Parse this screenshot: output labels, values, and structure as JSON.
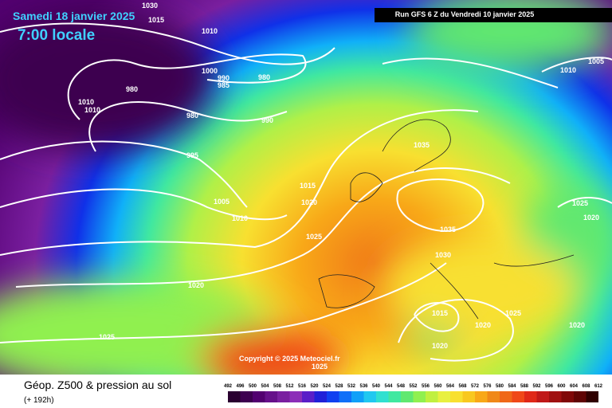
{
  "header": {
    "date": "Samedi 18 janvier 2025",
    "time": "7:00 locale",
    "run": "Run GFS 6 Z du Vendredi 10 janvier 2025"
  },
  "copyright": "Copyright © 2025 Meteociel.fr",
  "footer": {
    "title": "Géop. Z500 & pression au sol",
    "lead": "(+ 192h)"
  },
  "isobar_labels": [
    "1030",
    "1015",
    "1010",
    "1000",
    "990",
    "985",
    "980",
    "980",
    "1010",
    "1010",
    "980",
    "990",
    "995",
    "1005",
    "1010",
    "1015",
    "1020",
    "1025",
    "1035",
    "1035",
    "1030",
    "1020",
    "1025",
    "1015",
    "1020",
    "1025",
    "1020",
    "1020",
    "1025",
    "1020",
    "1005",
    "1010",
    "1025"
  ],
  "legend": {
    "labels": [
      492,
      496,
      500,
      504,
      508,
      512,
      516,
      520,
      524,
      528,
      532,
      536,
      540,
      544,
      548,
      552,
      556,
      560,
      564,
      568,
      572,
      576,
      580,
      584,
      588,
      592,
      596,
      600,
      604,
      608,
      612
    ],
    "colors": [
      "#2a0030",
      "#3d0050",
      "#520070",
      "#66108a",
      "#7a1fa0",
      "#8c2eb8",
      "#5a1ec8",
      "#2020d8",
      "#1040f0",
      "#1070f8",
      "#10a0f8",
      "#20c8f0",
      "#30e0d0",
      "#40e8a0",
      "#60e870",
      "#90f050",
      "#c0f040",
      "#e8f040",
      "#f8e030",
      "#f8c820",
      "#f8a818",
      "#f08818",
      "#f06818",
      "#f04818",
      "#e02818",
      "#c01818",
      "#a01010",
      "#800808",
      "#600404",
      "#300000"
    ]
  }
}
